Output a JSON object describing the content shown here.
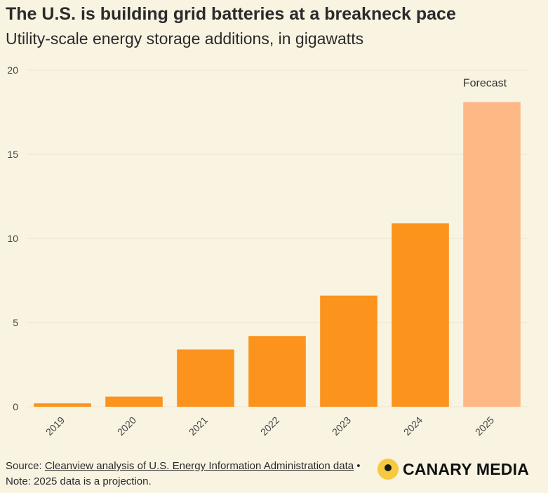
{
  "header": {
    "title": "The U.S. is building grid batteries at a breakneck pace",
    "subtitle": "Utility-scale energy storage additions, in gigawatts"
  },
  "chart_data": {
    "type": "bar",
    "categories": [
      "2019",
      "2020",
      "2021",
      "2022",
      "2023",
      "2024",
      "2025"
    ],
    "values": [
      0.2,
      0.6,
      3.4,
      4.2,
      6.6,
      10.9,
      18.1
    ],
    "ylim": [
      0,
      20
    ],
    "yticks": [
      0,
      5,
      10,
      15,
      20
    ],
    "grid": true,
    "colors": {
      "actual": "#fb931c",
      "forecast": "#fdb886",
      "grid": "#ece5d3",
      "text": "#444444"
    },
    "forecast_index": 6,
    "annotation": "Forecast"
  },
  "footer": {
    "source_prefix": "Source: ",
    "source_link": "Cleanview analysis of U.S. Energy Information Administration data",
    "note": " • Note: 2025 data is a projection."
  },
  "logo": {
    "text": "CANARY MEDIA",
    "mark_color": "#f6c93f"
  }
}
